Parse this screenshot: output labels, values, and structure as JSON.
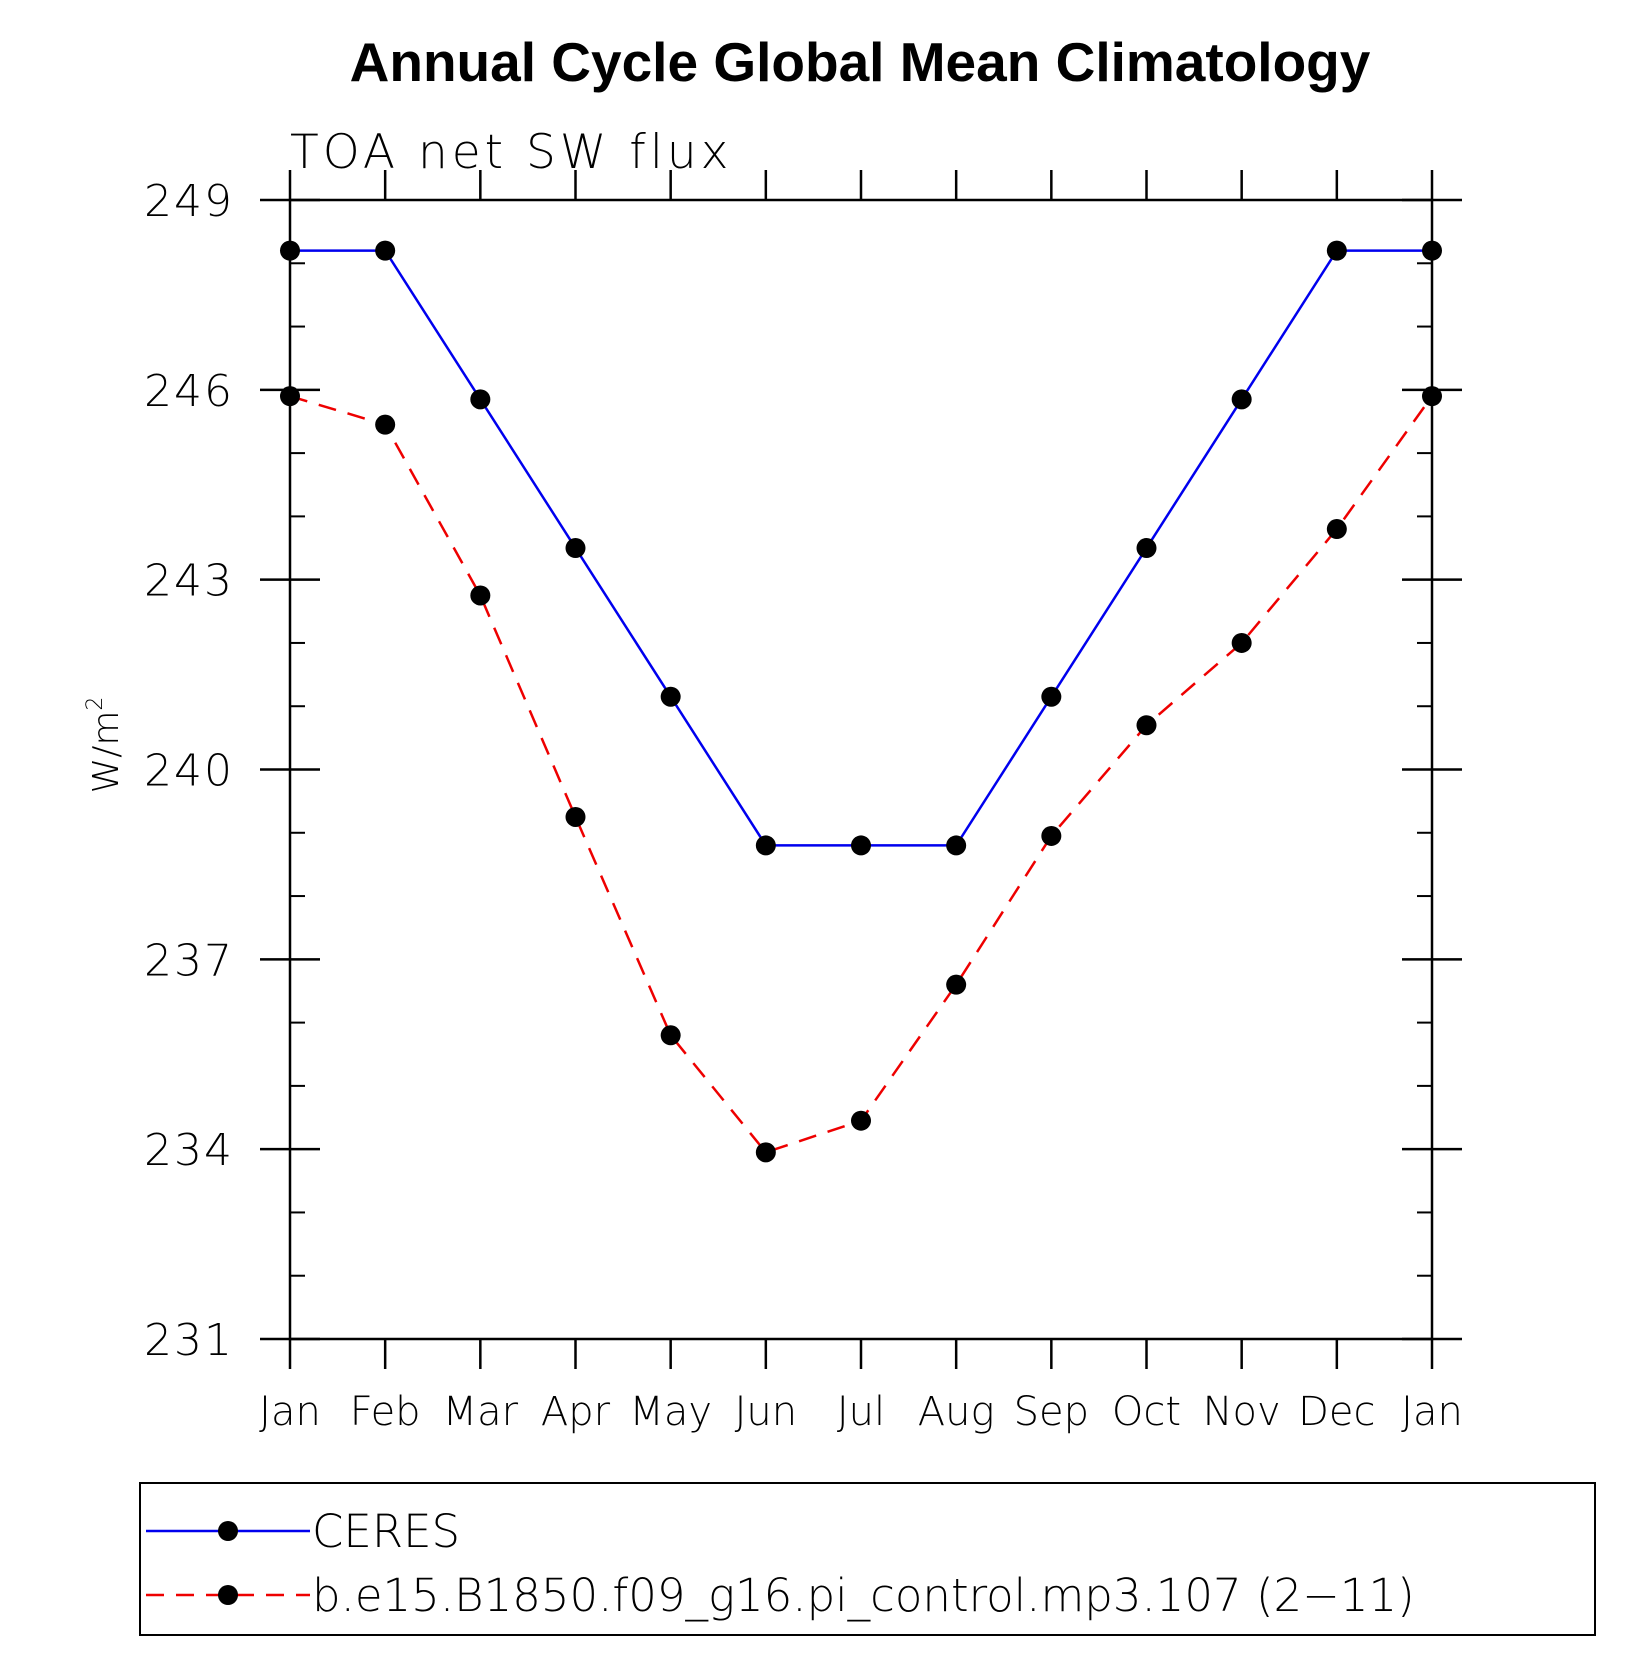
{
  "chart_data": {
    "type": "line",
    "title": "Annual Cycle Global Mean Climatology",
    "subtitle": "TOA net SW flux",
    "ylabel_base": "W/m",
    "ylabel_sup": "2",
    "xlabel": "",
    "categories": [
      "Jan",
      "Feb",
      "Mar",
      "Apr",
      "May",
      "Jun",
      "Jul",
      "Aug",
      "Sep",
      "Oct",
      "Nov",
      "Dec",
      "Jan"
    ],
    "ylim": [
      231,
      249
    ],
    "yticks": [
      231,
      234,
      237,
      240,
      243,
      246,
      249
    ],
    "ytick_labels": [
      "231",
      "234",
      "237",
      "240",
      "243",
      "246",
      "249"
    ],
    "minor_step": 1,
    "series": [
      {
        "name": "CERES",
        "color": "#0000ee",
        "dash": "solid",
        "values": [
          248.2,
          248.2,
          245.85,
          243.5,
          241.15,
          238.8,
          238.8,
          238.8,
          241.15,
          243.5,
          245.85,
          248.2,
          248.2
        ]
      },
      {
        "name": "b.e15.B1850.f09_g16.pi_control.mp3.107 (2−11)",
        "color": "#ee0000",
        "dash": "dashed",
        "values": [
          245.9,
          245.45,
          242.75,
          239.25,
          235.8,
          233.95,
          234.45,
          236.6,
          238.95,
          240.7,
          242.0,
          243.8,
          245.9
        ]
      }
    ],
    "legend_position": "bottom"
  }
}
